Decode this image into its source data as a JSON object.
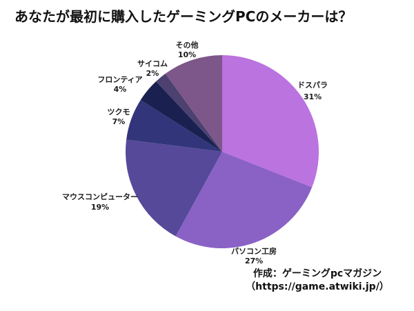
{
  "title": "あなたが最初に購入したゲーミングPCのメーカーは？",
  "chart_data": {
    "type": "pie",
    "categories": [
      "ドスパラ",
      "パソコン工房",
      "マウスコンピューター",
      "ツクモ",
      "フロンティア",
      "サイコム",
      "その他"
    ],
    "values": [
      31,
      27,
      19,
      7,
      4,
      2,
      10
    ],
    "value_labels": [
      "31%",
      "27%",
      "19%",
      "7%",
      "4%",
      "2%",
      "10%"
    ],
    "colors": [
      "#bb73df",
      "#8a62c6",
      "#56499a",
      "#32357a",
      "#1a2150",
      "#4c4170",
      "#7d5789"
    ],
    "title": "あなたが最初に購入したゲーミングPCのメーカーは？",
    "start_angle_deg": 0,
    "direction": "clockwise",
    "legend": "none",
    "labels_position": "outside",
    "background": "#ffffff",
    "label_color": "#1a1a1a"
  },
  "attribution": {
    "line1": "作成：ゲーミングpcマガジン",
    "line2": "（https://game.atwiki.jp/）"
  }
}
